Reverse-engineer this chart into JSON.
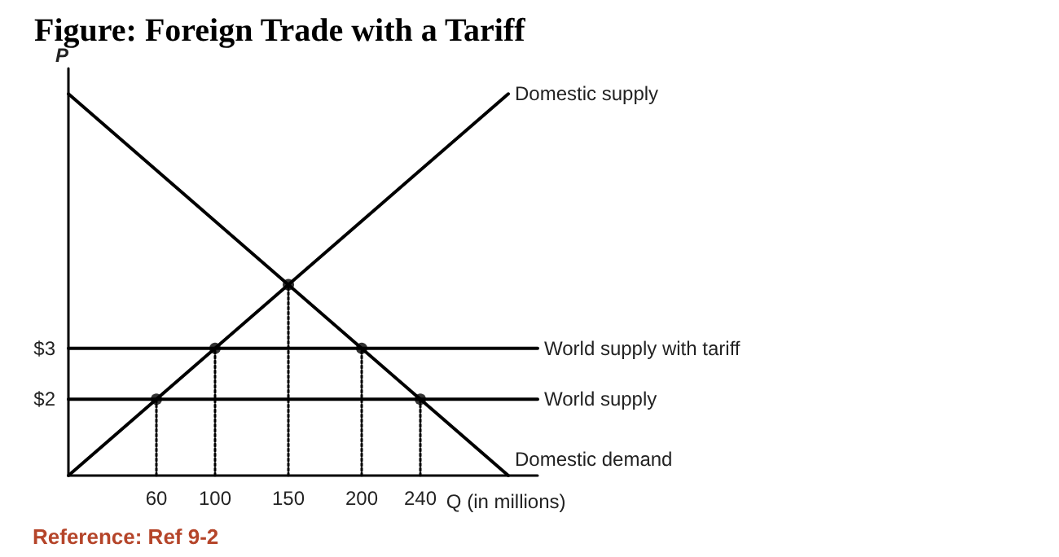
{
  "chart_data": {
    "type": "line",
    "title": "Figure: Foreign Trade with a Tariff",
    "xlabel": "Q (in millions)",
    "ylabel": "P",
    "annotations": [
      "Reference: Ref 9-2"
    ],
    "xlim": [
      0,
      320
    ],
    "xticks": [
      60,
      100,
      150,
      200,
      240
    ],
    "ylim": [
      0.5,
      8.5
    ],
    "yticks": [
      {
        "value": 2,
        "label": "$2"
      },
      {
        "value": 3,
        "label": "$3"
      }
    ],
    "grid": false,
    "legend": false,
    "marker": "none",
    "line_style": "solid",
    "series": [
      {
        "name": "Domestic supply",
        "color": "#000000",
        "x": [
          0,
          300
        ],
        "values": [
          0.5,
          8
        ]
      },
      {
        "name": "Domestic demand",
        "color": "#000000",
        "x": [
          0,
          300
        ],
        "values": [
          8,
          0.5
        ]
      },
      {
        "name": "World supply with tariff",
        "color": "#000000",
        "x": [
          0,
          320
        ],
        "values": [
          3,
          3
        ]
      },
      {
        "name": "World supply",
        "color": "#000000",
        "x": [
          0,
          320
        ],
        "values": [
          2,
          2
        ]
      },
      {
        "color": "#000000",
        "line_style": "dotted",
        "x": [
          60,
          60
        ],
        "values": [
          0.5,
          2
        ]
      },
      {
        "color": "#000000",
        "line_style": "dotted",
        "x": [
          100,
          100
        ],
        "values": [
          0.5,
          3
        ]
      },
      {
        "color": "#000000",
        "line_style": "dotted",
        "x": [
          150,
          150
        ],
        "values": [
          0.5,
          4.25
        ]
      },
      {
        "color": "#000000",
        "line_style": "dotted",
        "x": [
          200,
          200
        ],
        "values": [
          0.5,
          3
        ]
      },
      {
        "color": "#000000",
        "line_style": "dotted",
        "x": [
          240,
          240
        ],
        "values": [
          0.5,
          2
        ]
      },
      {
        "type": "scatter",
        "color": "#000000",
        "marker": "circle",
        "line_style": "dotted",
        "x": [
          60,
          100,
          150,
          200,
          240
        ],
        "values": [
          2,
          3,
          4.25,
          3,
          2
        ]
      }
    ]
  }
}
